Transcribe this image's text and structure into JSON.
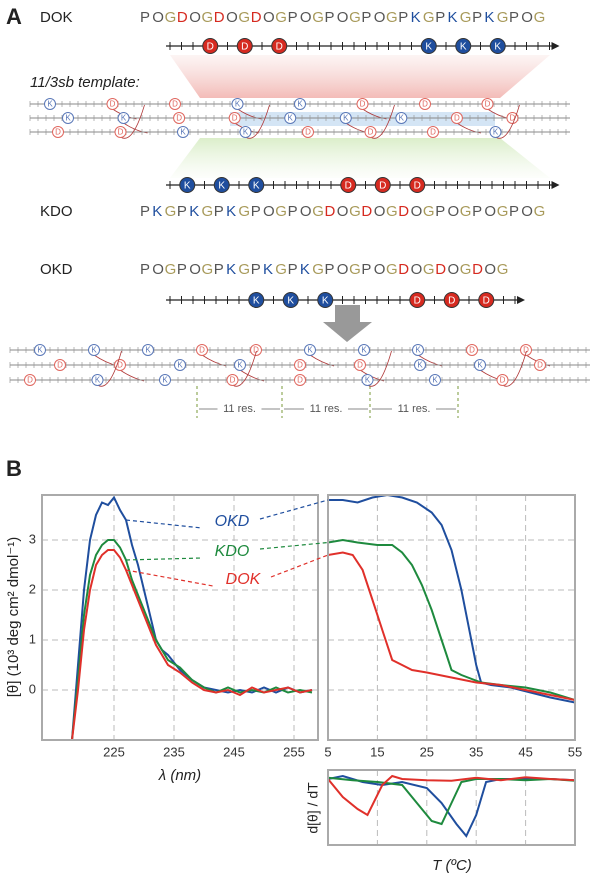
{
  "panel_a": {
    "label": "A",
    "template_label": "11/3sb template:",
    "peptides": [
      {
        "name": "DOK",
        "sequence": "POGDOGDOGDOGPOGPOGPOGPKGPKGPKGPOG",
        "markers": [
          "D",
          "D",
          "D",
          "K",
          "K",
          "K"
        ]
      },
      {
        "name": "KDO",
        "sequence": "PKGPKGPKGPOGPOGDOGDOGDOGPOGPOGPOG",
        "markers": [
          "K",
          "K",
          "K",
          "D",
          "D",
          "D"
        ]
      },
      {
        "name": "OKD",
        "sequence": "POGPOGPKGPKGPKGPOGPOGDOGDOGDOG",
        "markers": [
          "K",
          "K",
          "K",
          "D",
          "D",
          "D"
        ]
      }
    ],
    "template_1": [
      [
        "K",
        "D",
        "D",
        "K",
        "K",
        "D",
        "D",
        "D"
      ],
      [
        "K",
        "K",
        "D",
        "D",
        "K",
        "K",
        "K",
        "D",
        "D"
      ],
      [
        "D",
        "D",
        "K",
        "K",
        "D",
        "D",
        "D",
        "K"
      ]
    ],
    "template_2": [
      [
        "K",
        "K",
        "K",
        "D",
        "D",
        "K",
        "K",
        "K",
        "D",
        "D"
      ],
      [
        "D",
        "D",
        "K",
        "K",
        "D",
        "D",
        "K",
        "K",
        "D"
      ],
      [
        "D",
        "K",
        "K",
        "D",
        "D",
        "K",
        "K",
        "D"
      ]
    ],
    "spacing_labels": [
      "11 res.",
      "11 res.",
      "11 res."
    ]
  },
  "panel_b": {
    "label": "B"
  },
  "chart_data": [
    {
      "type": "line",
      "xlabel": "λ (nm)",
      "ylabel": "[θ] (10³ deg cm² dmol⁻¹)",
      "xlim": [
        213,
        259
      ],
      "ylim": [
        -1,
        3.9
      ],
      "xticks": [
        225,
        235,
        245,
        255
      ],
      "yticks": [
        0,
        1,
        2,
        3
      ],
      "grid": true,
      "series": [
        {
          "name": "OKD",
          "color": "#1f4e9e",
          "x": [
            218,
            219,
            220,
            221,
            222,
            223,
            224,
            225,
            226,
            227,
            228,
            229,
            230,
            231,
            232,
            233,
            234,
            236,
            238,
            240,
            242,
            244,
            246,
            248,
            250,
            252,
            254,
            256,
            258
          ],
          "values": [
            -1,
            0.5,
            2,
            3,
            3.5,
            3.75,
            3.7,
            3.85,
            3.6,
            3.4,
            2.9,
            2.5,
            2,
            1.5,
            1,
            0.8,
            0.7,
            0.4,
            0.2,
            0.05,
            0,
            -0.05,
            0,
            -0.05,
            0.05,
            -0.05,
            0.05,
            -0.05,
            0
          ]
        },
        {
          "name": "KDO",
          "color": "#1e8a3e",
          "x": [
            218,
            219,
            220,
            221,
            222,
            223,
            224,
            225,
            226,
            227,
            228,
            229,
            230,
            231,
            232,
            233,
            234,
            236,
            238,
            240,
            242,
            244,
            246,
            248,
            250,
            252,
            254,
            256,
            258
          ],
          "values": [
            -1,
            0.2,
            1.5,
            2.3,
            2.7,
            2.9,
            3,
            3,
            2.85,
            2.6,
            2.2,
            1.9,
            1.6,
            1.3,
            1,
            0.8,
            0.6,
            0.45,
            0.2,
            0.05,
            -0.05,
            0.05,
            -0.05,
            0,
            -0.05,
            0.05,
            -0.05,
            0,
            -0.05
          ]
        },
        {
          "name": "DOK",
          "color": "#e0302a",
          "x": [
            218,
            219,
            220,
            221,
            222,
            223,
            224,
            225,
            226,
            227,
            228,
            229,
            230,
            231,
            232,
            233,
            234,
            236,
            238,
            240,
            242,
            244,
            246,
            248,
            250,
            252,
            254,
            256,
            258
          ],
          "values": [
            -1,
            0,
            1.2,
            2,
            2.5,
            2.7,
            2.8,
            2.8,
            2.65,
            2.4,
            2.1,
            1.8,
            1.5,
            1.2,
            0.9,
            0.7,
            0.5,
            0.35,
            0.15,
            0,
            -0.05,
            0,
            -0.1,
            0.05,
            -0.05,
            0,
            0.05,
            -0.05,
            0
          ]
        }
      ]
    },
    {
      "type": "line",
      "xlabel": "T (ºC)",
      "xlim": [
        5,
        55
      ],
      "ylim": [
        -1,
        3.9
      ],
      "xticks": [
        5,
        15,
        25,
        35,
        45,
        55
      ],
      "grid": true,
      "series": [
        {
          "name": "OKD",
          "color": "#1f4e9e",
          "x": [
            5,
            8,
            11,
            14,
            17,
            20,
            23,
            26,
            28,
            30,
            32,
            34,
            35,
            36,
            38,
            42,
            46,
            50,
            55
          ],
          "values": [
            3.8,
            3.8,
            3.75,
            3.85,
            3.9,
            3.85,
            3.75,
            3.55,
            3.3,
            2.8,
            2,
            1,
            0.5,
            0.15,
            0.1,
            0.05,
            -0.05,
            -0.15,
            -0.25
          ]
        },
        {
          "name": "KDO",
          "color": "#1e8a3e",
          "x": [
            5,
            8,
            11,
            15,
            18,
            20,
            22,
            24,
            26,
            28,
            29,
            30,
            32,
            36,
            40,
            45,
            50,
            55
          ],
          "values": [
            2.95,
            3,
            2.95,
            2.9,
            2.9,
            2.75,
            2.5,
            2.1,
            1.6,
            1,
            0.7,
            0.4,
            0.3,
            0.15,
            0.1,
            0.05,
            -0.05,
            -0.2
          ]
        },
        {
          "name": "DOK",
          "color": "#e0302a",
          "x": [
            5,
            8,
            10,
            12,
            14,
            16,
            18,
            20,
            22,
            25,
            30,
            35,
            40,
            45,
            50,
            55
          ],
          "values": [
            2.7,
            2.75,
            2.7,
            2.4,
            1.8,
            1.2,
            0.6,
            0.5,
            0.4,
            0.35,
            0.25,
            0.15,
            0.1,
            0,
            -0.1,
            -0.2
          ]
        }
      ]
    },
    {
      "type": "line",
      "ylabel": "d[θ] / dT",
      "xlim": [
        5,
        55
      ],
      "ylim": [
        -1.1,
        0.15
      ],
      "series": [
        {
          "name": "OKD",
          "color": "#1f4e9e",
          "x": [
            5,
            8,
            12,
            16,
            20,
            25,
            28,
            31,
            33,
            35,
            37,
            40,
            45,
            50,
            55
          ],
          "values": [
            0,
            0.05,
            -0.05,
            -0.1,
            -0.05,
            -0.15,
            -0.4,
            -0.75,
            -0.95,
            -0.6,
            -0.05,
            0,
            0,
            0,
            -0.02
          ]
        },
        {
          "name": "KDO",
          "color": "#1e8a3e",
          "x": [
            5,
            10,
            15,
            20,
            23,
            26,
            28,
            30,
            32,
            35,
            40,
            45,
            50,
            55
          ],
          "values": [
            0.02,
            -0.02,
            -0.05,
            -0.1,
            -0.4,
            -0.7,
            -0.75,
            -0.4,
            -0.05,
            0,
            0,
            -0.02,
            0,
            -0.03
          ]
        },
        {
          "name": "DOK",
          "color": "#e0302a",
          "x": [
            5,
            8,
            11,
            13,
            16,
            18,
            20,
            25,
            30,
            35,
            40,
            45,
            50,
            55
          ],
          "values": [
            0,
            -0.3,
            -0.5,
            -0.6,
            -0.1,
            0.05,
            0,
            -0.02,
            -0.03,
            0.02,
            -0.02,
            0.03,
            0,
            -0.02
          ]
        }
      ]
    }
  ]
}
